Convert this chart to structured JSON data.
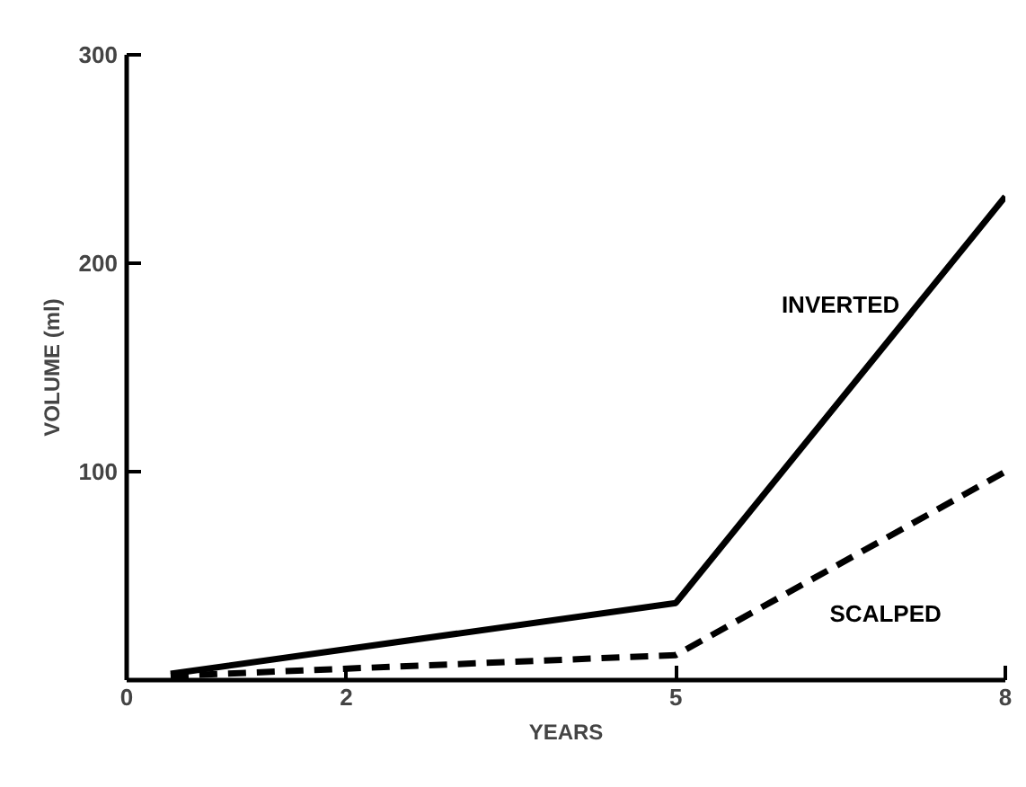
{
  "chart_data": {
    "type": "line",
    "xlabel": "YEARS",
    "ylabel": "VOLUME (ml)",
    "xlim": [
      0,
      8
    ],
    "ylim": [
      0,
      300
    ],
    "xticks": [
      0,
      2,
      5,
      8
    ],
    "yticks": [
      100,
      200,
      300
    ],
    "grid": false,
    "legend": false,
    "marker": "none",
    "series": [
      {
        "name": "INVERTED",
        "color": "#000000",
        "line_style": "solid",
        "x": [
          0.4,
          5,
          8
        ],
        "values": [
          3,
          37,
          232
        ]
      },
      {
        "name": "SCALPED",
        "color": "#000000",
        "line_style": "dashed",
        "x": [
          0.4,
          5,
          8
        ],
        "values": [
          2,
          12,
          100
        ]
      }
    ]
  }
}
